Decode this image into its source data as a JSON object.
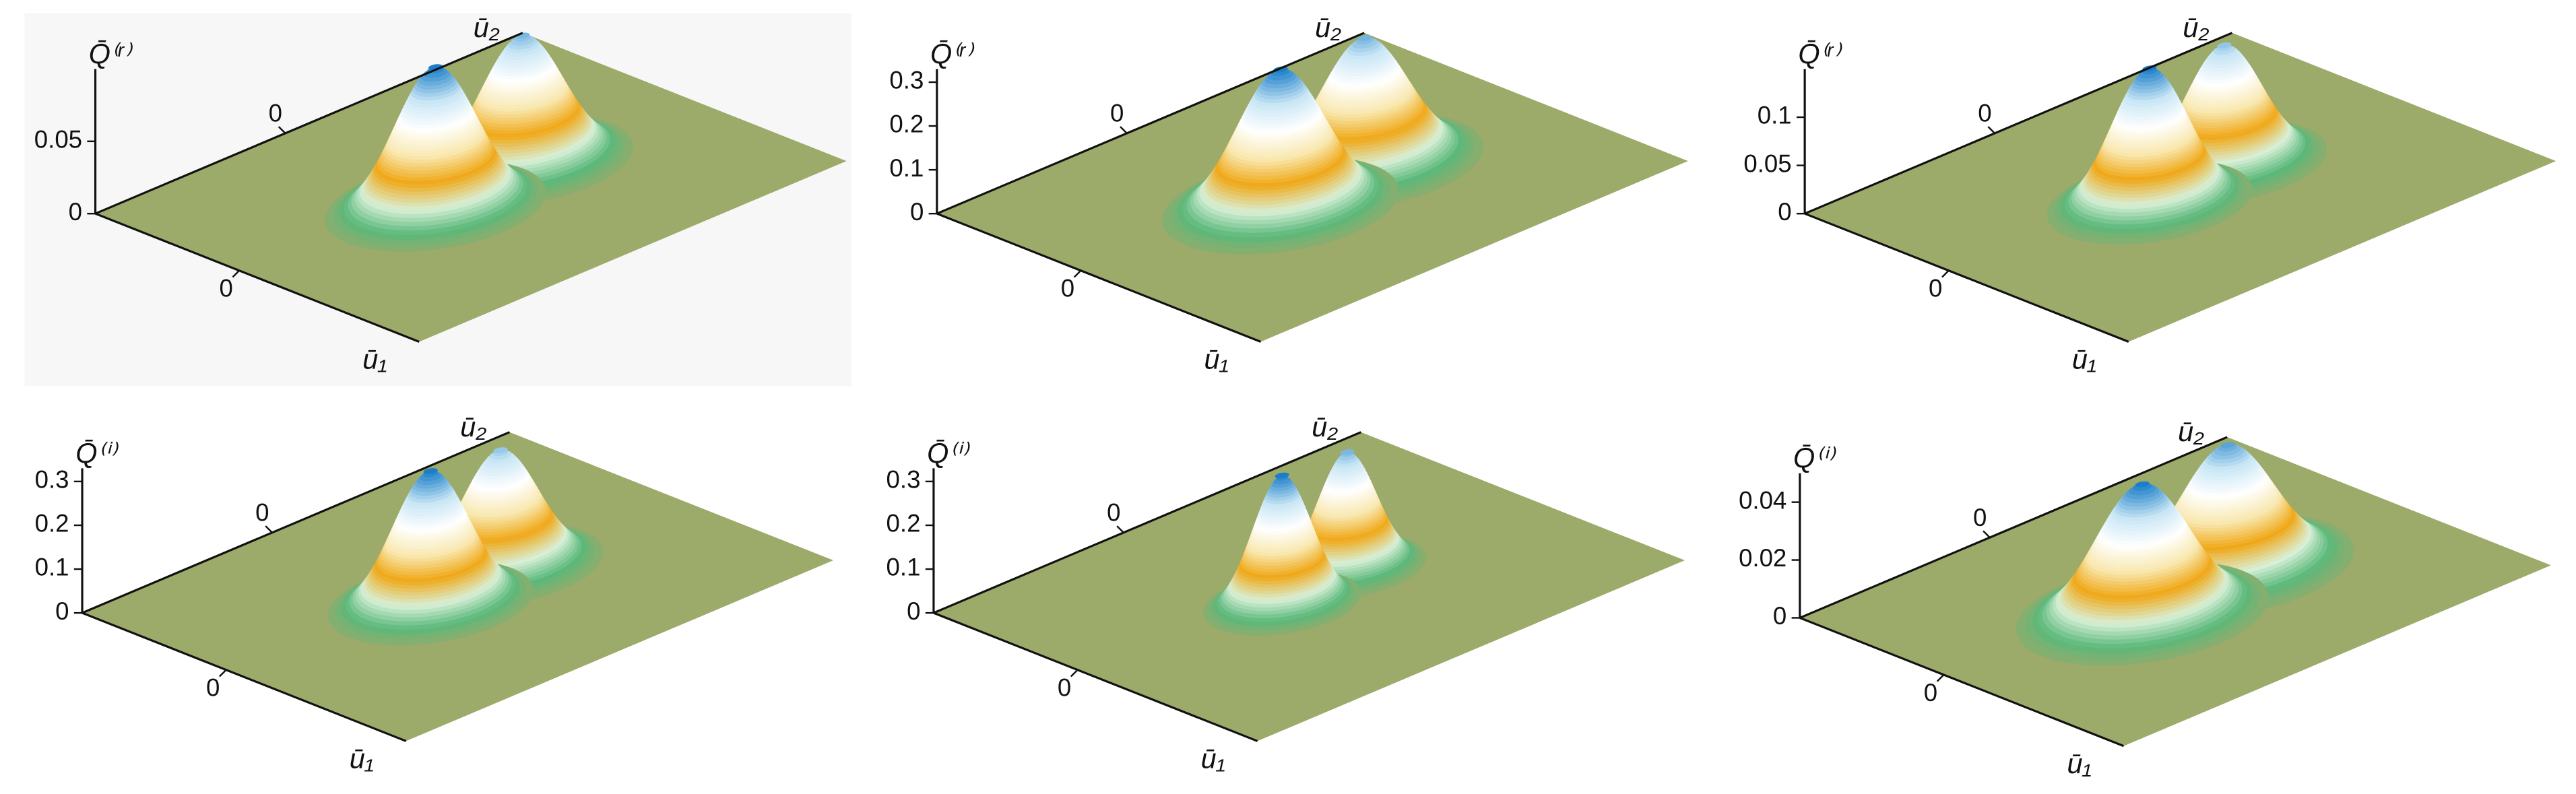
{
  "chart_data": [
    {
      "type": "surface",
      "zlabel": "Q̄⁽ʳ⁾",
      "xlabel": "ū₁",
      "ylabel": "ū₂",
      "xlim": [
        -4,
        5
      ],
      "ylim": [
        -4,
        5
      ],
      "zlim": [
        0,
        0.1
      ],
      "xticks": [
        0
      ],
      "yticks": [
        0
      ],
      "zticks": [
        0,
        0.05
      ],
      "plane_color": "#9caa6a",
      "peaks": [
        {
          "u1": 0.77,
          "u2": -0.45,
          "height": 0.099
        },
        {
          "u1": 0.46,
          "u2": 1.62,
          "height": 0.089
        }
      ]
    },
    {
      "type": "surface",
      "zlabel": "Q̄⁽ʳ⁾",
      "xlabel": "ū₁",
      "ylabel": "ū₂",
      "xlim": [
        -4,
        5
      ],
      "ylim": [
        -4,
        5
      ],
      "zlim": [
        0,
        0.33
      ],
      "xticks": [
        0
      ],
      "yticks": [
        0
      ],
      "zticks": [
        0,
        0.1,
        0.2,
        0.3
      ],
      "plane_color": "#9caa6a",
      "peaks": [
        {
          "u1": 0.8,
          "u2": -0.4,
          "height": 0.32
        },
        {
          "u1": 0.5,
          "u2": 1.6,
          "height": 0.29
        }
      ]
    },
    {
      "type": "surface",
      "zlabel": "Q̄⁽ʳ⁾",
      "xlabel": "ū₁",
      "ylabel": "ū₂",
      "xlim": [
        -4,
        5
      ],
      "ylim": [
        -4,
        5
      ],
      "zlim": [
        0,
        0.15
      ],
      "xticks": [
        0
      ],
      "yticks": [
        0
      ],
      "zticks": [
        0,
        0.05,
        0.1
      ],
      "plane_color": "#9caa6a",
      "peaks": [
        {
          "u1": 0.7,
          "u2": -0.3,
          "height": 0.143
        },
        {
          "u1": 0.4,
          "u2": 1.5,
          "height": 0.125
        }
      ]
    },
    {
      "type": "surface",
      "zlabel": "Q̄⁽ⁱ⁾",
      "xlabel": "ū₁",
      "ylabel": "ū₂",
      "xlim": [
        -4,
        5
      ],
      "ylim": [
        -4,
        5
      ],
      "zlim": [
        0,
        0.33
      ],
      "xticks": [
        0
      ],
      "yticks": [
        0
      ],
      "zticks": [
        0,
        0.1,
        0.2,
        0.3
      ],
      "plane_color": "#9caa6a",
      "peaks": [
        {
          "u1": 0.8,
          "u2": -0.3,
          "height": 0.31
        },
        {
          "u1": 0.5,
          "u2": 1.4,
          "height": 0.27
        }
      ]
    },
    {
      "type": "surface",
      "zlabel": "Q̄⁽ⁱ⁾",
      "xlabel": "ū₁",
      "ylabel": "ū₂",
      "xlim": [
        -4,
        5
      ],
      "ylim": [
        -4,
        5
      ],
      "zlim": [
        0,
        0.33
      ],
      "xticks": [
        0
      ],
      "yticks": [
        0
      ],
      "zticks": [
        0,
        0.1,
        0.2,
        0.3
      ],
      "plane_color": "#9caa6a",
      "peaks": [
        {
          "u1": 0.8,
          "u2": -0.3,
          "height": 0.3
        },
        {
          "u1": 0.5,
          "u2": 1.3,
          "height": 0.27
        }
      ]
    },
    {
      "type": "surface",
      "zlabel": "Q̄⁽ⁱ⁾",
      "xlabel": "ū₁",
      "ylabel": "ū₂",
      "xlim": [
        -4,
        5
      ],
      "ylim": [
        -4,
        5
      ],
      "zlim": [
        0,
        0.05
      ],
      "xticks": [
        0
      ],
      "yticks": [
        0
      ],
      "zticks": [
        0,
        0.02,
        0.04
      ],
      "plane_color": "#9caa6a",
      "peaks": [
        {
          "u1": 0.9,
          "u2": -0.5,
          "height": 0.046
        },
        {
          "u1": 0.5,
          "u2": 1.6,
          "height": 0.043
        }
      ]
    }
  ]
}
